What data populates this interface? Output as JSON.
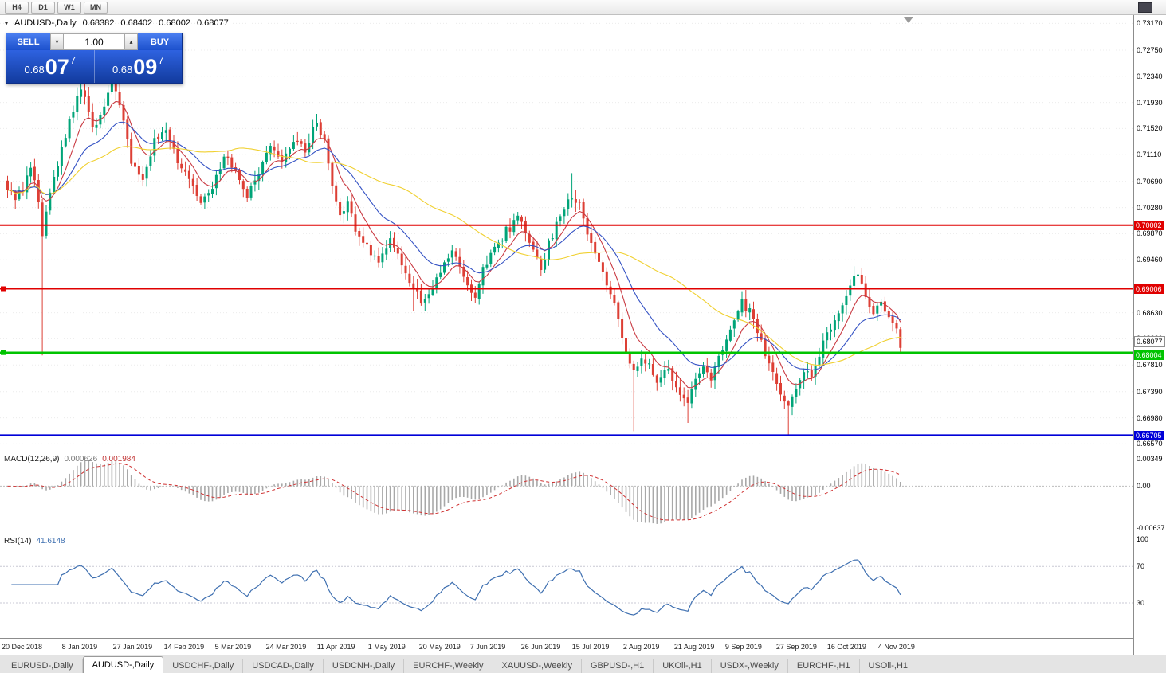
{
  "toolbar": {
    "timeframes": [
      "H4",
      "D1",
      "W1",
      "MN"
    ]
  },
  "symbol_header": {
    "icon": "▾",
    "symbol": "AUDUSD-,Daily",
    "open": "0.68382",
    "high": "0.68402",
    "low": "0.68002",
    "close": "0.68077"
  },
  "trade_panel": {
    "sell_label": "SELL",
    "buy_label": "BUY",
    "volume": "1.00",
    "down_icon": "▾",
    "up_icon": "▴",
    "sell_price": {
      "prefix": "0.68",
      "pips": "07",
      "frac": "7"
    },
    "buy_price": {
      "prefix": "0.68",
      "pips": "09",
      "frac": "7"
    }
  },
  "indicators": {
    "macd_name": "MACD(12,26,9)",
    "macd_value": "0.000626",
    "macd_signal": "0.001984",
    "rsi_name": "RSI(14)",
    "rsi_value": "41.6148"
  },
  "price_axis": {
    "ticks": [
      "0.73170",
      "0.72750",
      "0.72340",
      "0.71930",
      "0.71520",
      "0.71110",
      "0.70690",
      "0.70280",
      "0.69870",
      "0.69460",
      "0.68630",
      "0.68220",
      "0.67810",
      "0.67390",
      "0.66980",
      "0.66570"
    ],
    "badges": [
      {
        "value": "0.70002",
        "bg": "#e00000",
        "fg": "#ffffff",
        "dy": 0
      },
      {
        "value": "0.69006",
        "bg": "#e00000",
        "fg": "#ffffff",
        "dy": 0
      },
      {
        "value": "0.68077",
        "bg": "#ffffff",
        "fg": "#000000",
        "border": "#909090",
        "dy": -9
      },
      {
        "value": "0.68004",
        "bg": "#00c400",
        "fg": "#ffffff",
        "dy": 3
      },
      {
        "value": "0.66705",
        "bg": "#0000d8",
        "fg": "#ffffff",
        "dy": 0
      }
    ]
  },
  "macd_axis": [
    "0.00349",
    "0.00",
    "-0.00637"
  ],
  "rsi_axis": [
    "100",
    "70",
    "30"
  ],
  "dates": [
    "20 Dec 2018",
    "8 Jan 2019",
    "27 Jan 2019",
    "14 Feb 2019",
    "5 Mar 2019",
    "24 Mar 2019",
    "11 Apr 2019",
    "1 May 2019",
    "20 May 2019",
    "7 Jun 2019",
    "26 Jun 2019",
    "15 Jul 2019",
    "2 Aug 2019",
    "21 Aug 2019",
    "9 Sep 2019",
    "27 Sep 2019",
    "16 Oct 2019",
    "4 Nov 2019"
  ],
  "tabs": [
    {
      "label": "EURUSD-,Daily",
      "active": false
    },
    {
      "label": "AUDUSD-,Daily",
      "active": true
    },
    {
      "label": "USDCHF-,Daily",
      "active": false
    },
    {
      "label": "USDCAD-,Daily",
      "active": false
    },
    {
      "label": "USDCNH-,Daily",
      "active": false
    },
    {
      "label": "EURCHF-,Weekly",
      "active": false
    },
    {
      "label": "XAUUSD-,Weekly",
      "active": false
    },
    {
      "label": "GBPUSD-,H1",
      "active": false
    },
    {
      "label": "UKOil-,H1",
      "active": false
    },
    {
      "label": "USDX-,Weekly",
      "active": false
    },
    {
      "label": "EURCHF-,H1",
      "active": false
    },
    {
      "label": "USOil-,H1",
      "active": false
    }
  ],
  "chart_data": {
    "type": "candlestick",
    "symbol": "AUDUSD",
    "timeframe": "Daily",
    "title": "AUDUSD-,Daily",
    "bars": 232,
    "y_range": [
      0.6645,
      0.733
    ],
    "last_ohlc": {
      "open": 0.68382,
      "high": 0.68402,
      "low": 0.68002,
      "close": 0.68077
    },
    "colors": {
      "up": "#00a478",
      "down": "#dd3f35",
      "background": "#ffffff"
    },
    "hlines": [
      {
        "price": 0.70002,
        "color": "#e00000",
        "width": 2,
        "anchor": false
      },
      {
        "price": 0.69006,
        "color": "#e00000",
        "width": 2,
        "anchor": true
      },
      {
        "price": 0.68004,
        "color": "#00c400",
        "width": 2.5,
        "anchor": true
      },
      {
        "price": 0.66705,
        "color": "#0000d8",
        "width": 2.5,
        "anchor": false
      }
    ],
    "moving_averages": [
      {
        "period": 8,
        "method": "ema",
        "color": "#c93a42"
      },
      {
        "period": 20,
        "method": "ema",
        "color": "#3452c4"
      },
      {
        "period": 50,
        "method": "sma",
        "color": "#f0d030"
      }
    ],
    "price_path": [
      [
        0,
        0.7062
      ],
      [
        2,
        0.7043
      ],
      [
        4,
        0.7058
      ],
      [
        6,
        0.7094
      ],
      [
        8,
        0.7036
      ],
      [
        9,
        0.699
      ],
      [
        11,
        0.7058
      ],
      [
        14,
        0.7118
      ],
      [
        17,
        0.7182
      ],
      [
        19,
        0.7218
      ],
      [
        22,
        0.7152
      ],
      [
        24,
        0.7176
      ],
      [
        27,
        0.7228
      ],
      [
        29,
        0.7192
      ],
      [
        32,
        0.7098
      ],
      [
        35,
        0.7074
      ],
      [
        38,
        0.7133
      ],
      [
        41,
        0.7149
      ],
      [
        44,
        0.7103
      ],
      [
        47,
        0.7076
      ],
      [
        50,
        0.7032
      ],
      [
        53,
        0.7064
      ],
      [
        56,
        0.7108
      ],
      [
        59,
        0.7086
      ],
      [
        62,
        0.7046
      ],
      [
        65,
        0.7084
      ],
      [
        68,
        0.7128
      ],
      [
        71,
        0.7104
      ],
      [
        74,
        0.7138
      ],
      [
        77,
        0.7121
      ],
      [
        80,
        0.7163
      ],
      [
        82,
        0.7131
      ],
      [
        84,
        0.7062
      ],
      [
        86,
        0.7016
      ],
      [
        88,
        0.7034
      ],
      [
        90,
        0.6992
      ],
      [
        93,
        0.6966
      ],
      [
        96,
        0.6941
      ],
      [
        99,
        0.6984
      ],
      [
        102,
        0.6936
      ],
      [
        105,
        0.6906
      ],
      [
        107,
        0.6882
      ],
      [
        109,
        0.6896
      ],
      [
        112,
        0.6924
      ],
      [
        115,
        0.6958
      ],
      [
        117,
        0.6941
      ],
      [
        119,
        0.6906
      ],
      [
        121,
        0.6882
      ],
      [
        123,
        0.6931
      ],
      [
        126,
        0.6964
      ],
      [
        129,
        0.6991
      ],
      [
        132,
        0.7009
      ],
      [
        134,
        0.6994
      ],
      [
        136,
        0.6961
      ],
      [
        138,
        0.6926
      ],
      [
        140,
        0.6974
      ],
      [
        143,
        0.7012
      ],
      [
        146,
        0.7046
      ],
      [
        148,
        0.7031
      ],
      [
        150,
        0.6991
      ],
      [
        152,
        0.6961
      ],
      [
        154,
        0.6926
      ],
      [
        156,
        0.6891
      ],
      [
        158,
        0.6852
      ],
      [
        160,
        0.6801
      ],
      [
        162,
        0.6772
      ],
      [
        164,
        0.6794
      ],
      [
        166,
        0.6781
      ],
      [
        168,
        0.6757
      ],
      [
        170,
        0.6776
      ],
      [
        172,
        0.6761
      ],
      [
        174,
        0.6736
      ],
      [
        176,
        0.6717
      ],
      [
        178,
        0.6759
      ],
      [
        180,
        0.6774
      ],
      [
        182,
        0.6756
      ],
      [
        184,
        0.6789
      ],
      [
        186,
        0.6818
      ],
      [
        188,
        0.6849
      ],
      [
        190,
        0.6879
      ],
      [
        192,
        0.6864
      ],
      [
        194,
        0.6831
      ],
      [
        196,
        0.6801
      ],
      [
        198,
        0.6771
      ],
      [
        200,
        0.6741
      ],
      [
        202,
        0.6716
      ],
      [
        204,
        0.6744
      ],
      [
        206,
        0.6774
      ],
      [
        208,
        0.6761
      ],
      [
        210,
        0.6799
      ],
      [
        212,
        0.6829
      ],
      [
        214,
        0.6849
      ],
      [
        216,
        0.6879
      ],
      [
        218,
        0.6909
      ],
      [
        220,
        0.6924
      ],
      [
        222,
        0.6891
      ],
      [
        224,
        0.6866
      ],
      [
        226,
        0.6881
      ],
      [
        228,
        0.6856
      ],
      [
        230,
        0.68382
      ],
      [
        231,
        0.68077
      ]
    ],
    "special_highs": {
      "19": 0.7237,
      "27": 0.724,
      "80": 0.7175,
      "146": 0.7082,
      "231": 0.68402
    },
    "special_lows": {
      "9": 0.6796,
      "105": 0.6865,
      "162": 0.6677,
      "176": 0.669,
      "202": 0.66705,
      "231": 0.68002
    },
    "macd": {
      "fast": 12,
      "slow": 26,
      "signal": 9
    },
    "rsi": {
      "period": 14,
      "levels": [
        70,
        30
      ]
    }
  }
}
